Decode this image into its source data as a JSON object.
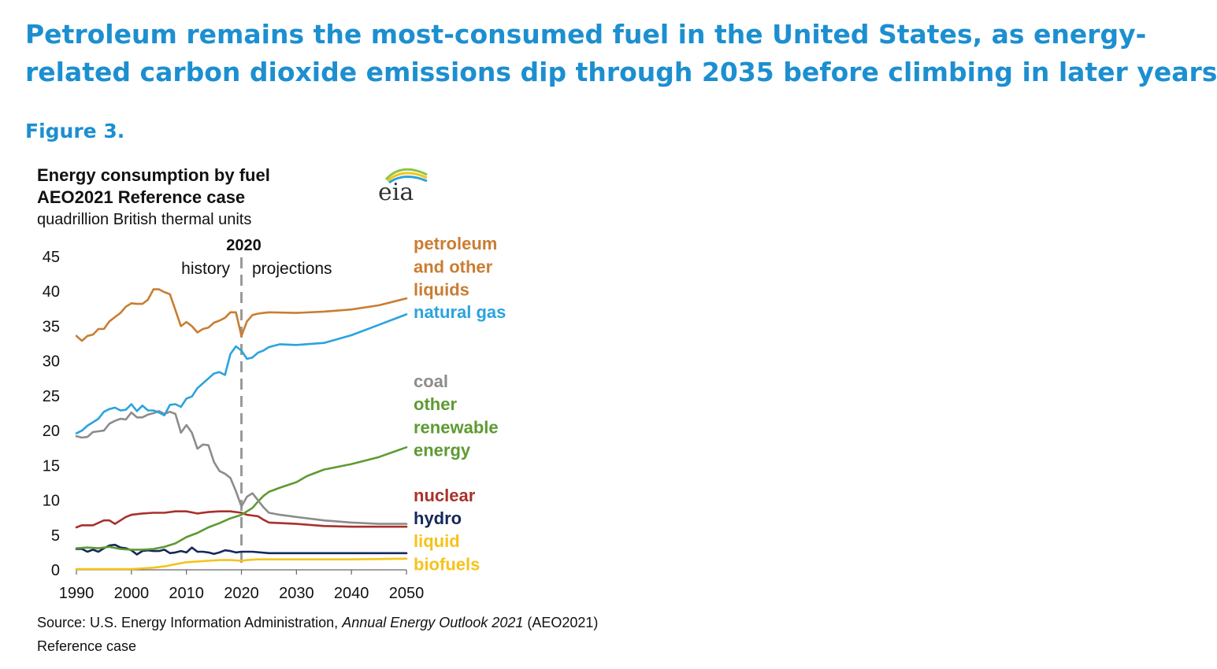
{
  "headline": {
    "line1": "Petroleum remains the most-consumed fuel in the United States, as energy-",
    "line2": "related carbon dioxide emissions dip through 2035 before climbing in later years"
  },
  "figure_label": "Figure 3.",
  "logo_text": "eia",
  "chart_data": {
    "type": "line",
    "title": "Energy consumption by fuel",
    "subtitle": "AEO2021 Reference case",
    "unit": "quadrillion  British thermal units",
    "xlim": [
      1990,
      2050
    ],
    "ylim": [
      0,
      45
    ],
    "x_ticks": [
      "1990",
      "2000",
      "2010",
      "2020",
      "2030",
      "2040",
      "2050"
    ],
    "y_ticks": [
      "0",
      "5",
      "10",
      "15",
      "20",
      "25",
      "30",
      "35",
      "40",
      "45"
    ],
    "divider": {
      "x": 2020,
      "label": "2020",
      "left_label": "history",
      "right_label": "projections"
    },
    "grid": false,
    "series": [
      {
        "name": "petroleum and other liquids",
        "label_lines": [
          "petroleum",
          "and other",
          "liquids"
        ],
        "color": "#c97d32",
        "points": [
          [
            1990,
            33.6
          ],
          [
            1991,
            32.9
          ],
          [
            1992,
            33.6
          ],
          [
            1993,
            33.8
          ],
          [
            1994,
            34.6
          ],
          [
            1995,
            34.6
          ],
          [
            1996,
            35.7
          ],
          [
            1997,
            36.3
          ],
          [
            1998,
            36.9
          ],
          [
            1999,
            37.8
          ],
          [
            2000,
            38.3
          ],
          [
            2001,
            38.2
          ],
          [
            2002,
            38.2
          ],
          [
            2003,
            38.8
          ],
          [
            2004,
            40.3
          ],
          [
            2005,
            40.3
          ],
          [
            2006,
            39.9
          ],
          [
            2007,
            39.6
          ],
          [
            2008,
            37.3
          ],
          [
            2009,
            35.0
          ],
          [
            2010,
            35.6
          ],
          [
            2011,
            35.0
          ],
          [
            2012,
            34.1
          ],
          [
            2013,
            34.6
          ],
          [
            2014,
            34.8
          ],
          [
            2015,
            35.5
          ],
          [
            2016,
            35.8
          ],
          [
            2017,
            36.2
          ],
          [
            2018,
            37.0
          ],
          [
            2019,
            37.0
          ],
          [
            2020,
            33.6
          ],
          [
            2021,
            35.7
          ],
          [
            2022,
            36.6
          ],
          [
            2023,
            36.8
          ],
          [
            2024,
            36.9
          ],
          [
            2025,
            37.0
          ],
          [
            2030,
            36.9
          ],
          [
            2035,
            37.1
          ],
          [
            2040,
            37.4
          ],
          [
            2045,
            38.0
          ],
          [
            2050,
            39.0
          ]
        ]
      },
      {
        "name": "natural gas",
        "label_lines": [
          "natural gas"
        ],
        "color": "#2aa3de",
        "points": [
          [
            1990,
            19.6
          ],
          [
            1991,
            20.0
          ],
          [
            1992,
            20.7
          ],
          [
            1993,
            21.2
          ],
          [
            1994,
            21.7
          ],
          [
            1995,
            22.7
          ],
          [
            1996,
            23.1
          ],
          [
            1997,
            23.3
          ],
          [
            1998,
            22.9
          ],
          [
            1999,
            23.0
          ],
          [
            2000,
            23.8
          ],
          [
            2001,
            22.8
          ],
          [
            2002,
            23.6
          ],
          [
            2003,
            22.9
          ],
          [
            2004,
            22.9
          ],
          [
            2005,
            22.6
          ],
          [
            2006,
            22.2
          ],
          [
            2007,
            23.7
          ],
          [
            2008,
            23.8
          ],
          [
            2009,
            23.4
          ],
          [
            2010,
            24.6
          ],
          [
            2011,
            24.9
          ],
          [
            2012,
            26.1
          ],
          [
            2013,
            26.8
          ],
          [
            2014,
            27.5
          ],
          [
            2015,
            28.2
          ],
          [
            2016,
            28.4
          ],
          [
            2017,
            28.0
          ],
          [
            2018,
            31.0
          ],
          [
            2019,
            32.1
          ],
          [
            2020,
            31.5
          ],
          [
            2021,
            30.3
          ],
          [
            2022,
            30.5
          ],
          [
            2023,
            31.2
          ],
          [
            2024,
            31.5
          ],
          [
            2025,
            32.0
          ],
          [
            2027,
            32.4
          ],
          [
            2030,
            32.3
          ],
          [
            2035,
            32.6
          ],
          [
            2040,
            33.7
          ],
          [
            2045,
            35.2
          ],
          [
            2050,
            36.7
          ]
        ]
      },
      {
        "name": "coal",
        "label_lines": [
          "coal"
        ],
        "color": "#8c8c8c",
        "points": [
          [
            1990,
            19.2
          ],
          [
            1991,
            19.0
          ],
          [
            1992,
            19.1
          ],
          [
            1993,
            19.8
          ],
          [
            1994,
            19.9
          ],
          [
            1995,
            20.0
          ],
          [
            1996,
            21.0
          ],
          [
            1997,
            21.4
          ],
          [
            1998,
            21.7
          ],
          [
            1999,
            21.6
          ],
          [
            2000,
            22.6
          ],
          [
            2001,
            21.9
          ],
          [
            2002,
            21.9
          ],
          [
            2003,
            22.3
          ],
          [
            2004,
            22.5
          ],
          [
            2005,
            22.8
          ],
          [
            2006,
            22.4
          ],
          [
            2007,
            22.7
          ],
          [
            2008,
            22.4
          ],
          [
            2009,
            19.7
          ],
          [
            2010,
            20.8
          ],
          [
            2011,
            19.7
          ],
          [
            2012,
            17.4
          ],
          [
            2013,
            18.0
          ],
          [
            2014,
            17.9
          ],
          [
            2015,
            15.5
          ],
          [
            2016,
            14.2
          ],
          [
            2017,
            13.8
          ],
          [
            2018,
            13.2
          ],
          [
            2019,
            11.3
          ],
          [
            2020,
            9.1
          ],
          [
            2021,
            10.5
          ],
          [
            2022,
            11.0
          ],
          [
            2023,
            10.0
          ],
          [
            2024,
            9.0
          ],
          [
            2025,
            8.2
          ],
          [
            2027,
            7.9
          ],
          [
            2030,
            7.6
          ],
          [
            2035,
            7.1
          ],
          [
            2040,
            6.8
          ],
          [
            2045,
            6.6
          ],
          [
            2050,
            6.6
          ]
        ]
      },
      {
        "name": "other renewable energy",
        "label_lines": [
          "other",
          "renewable",
          "energy"
        ],
        "color": "#5e9a32",
        "points": [
          [
            1990,
            3.1
          ],
          [
            1992,
            3.2
          ],
          [
            1994,
            3.1
          ],
          [
            1996,
            3.3
          ],
          [
            1998,
            3.0
          ],
          [
            2000,
            2.9
          ],
          [
            2002,
            2.9
          ],
          [
            2004,
            3.0
          ],
          [
            2006,
            3.3
          ],
          [
            2008,
            3.8
          ],
          [
            2010,
            4.7
          ],
          [
            2012,
            5.3
          ],
          [
            2014,
            6.1
          ],
          [
            2016,
            6.7
          ],
          [
            2018,
            7.4
          ],
          [
            2020,
            7.9
          ],
          [
            2022,
            8.9
          ],
          [
            2023,
            9.8
          ],
          [
            2024,
            10.6
          ],
          [
            2025,
            11.2
          ],
          [
            2027,
            11.8
          ],
          [
            2030,
            12.6
          ],
          [
            2032,
            13.5
          ],
          [
            2035,
            14.4
          ],
          [
            2040,
            15.2
          ],
          [
            2045,
            16.2
          ],
          [
            2050,
            17.6
          ]
        ]
      },
      {
        "name": "nuclear",
        "label_lines": [
          "nuclear"
        ],
        "color": "#a8312c",
        "points": [
          [
            1990,
            6.1
          ],
          [
            1991,
            6.4
          ],
          [
            1993,
            6.4
          ],
          [
            1995,
            7.1
          ],
          [
            1996,
            7.1
          ],
          [
            1997,
            6.6
          ],
          [
            1998,
            7.1
          ],
          [
            1999,
            7.6
          ],
          [
            2000,
            7.9
          ],
          [
            2002,
            8.1
          ],
          [
            2004,
            8.2
          ],
          [
            2006,
            8.2
          ],
          [
            2008,
            8.4
          ],
          [
            2010,
            8.4
          ],
          [
            2012,
            8.1
          ],
          [
            2014,
            8.3
          ],
          [
            2016,
            8.4
          ],
          [
            2018,
            8.4
          ],
          [
            2020,
            8.2
          ],
          [
            2021,
            7.9
          ],
          [
            2022,
            7.8
          ],
          [
            2023,
            7.7
          ],
          [
            2024,
            7.2
          ],
          [
            2025,
            6.8
          ],
          [
            2030,
            6.6
          ],
          [
            2035,
            6.3
          ],
          [
            2040,
            6.2
          ],
          [
            2045,
            6.2
          ],
          [
            2050,
            6.2
          ]
        ]
      },
      {
        "name": "hydro",
        "label_lines": [
          "hydro"
        ],
        "color": "#14285a",
        "points": [
          [
            1990,
            3.0
          ],
          [
            1991,
            3.0
          ],
          [
            1992,
            2.6
          ],
          [
            1993,
            2.9
          ],
          [
            1994,
            2.6
          ],
          [
            1995,
            3.1
          ],
          [
            1996,
            3.5
          ],
          [
            1997,
            3.6
          ],
          [
            1998,
            3.2
          ],
          [
            1999,
            3.1
          ],
          [
            2000,
            2.8
          ],
          [
            2001,
            2.2
          ],
          [
            2002,
            2.7
          ],
          [
            2003,
            2.8
          ],
          [
            2004,
            2.7
          ],
          [
            2005,
            2.7
          ],
          [
            2006,
            2.9
          ],
          [
            2007,
            2.4
          ],
          [
            2008,
            2.5
          ],
          [
            2009,
            2.7
          ],
          [
            2010,
            2.5
          ],
          [
            2011,
            3.2
          ],
          [
            2012,
            2.6
          ],
          [
            2013,
            2.6
          ],
          [
            2014,
            2.5
          ],
          [
            2015,
            2.3
          ],
          [
            2016,
            2.5
          ],
          [
            2017,
            2.8
          ],
          [
            2018,
            2.7
          ],
          [
            2019,
            2.5
          ],
          [
            2020,
            2.6
          ],
          [
            2022,
            2.6
          ],
          [
            2025,
            2.4
          ],
          [
            2030,
            2.4
          ],
          [
            2040,
            2.4
          ],
          [
            2050,
            2.4
          ]
        ]
      },
      {
        "name": "liquid biofuels",
        "label_lines": [
          "liquid",
          "biofuels"
        ],
        "color": "#f5c31b",
        "points": [
          [
            1990,
            0.1
          ],
          [
            1995,
            0.1
          ],
          [
            2000,
            0.1
          ],
          [
            2002,
            0.2
          ],
          [
            2004,
            0.3
          ],
          [
            2006,
            0.5
          ],
          [
            2008,
            0.8
          ],
          [
            2010,
            1.1
          ],
          [
            2012,
            1.2
          ],
          [
            2014,
            1.3
          ],
          [
            2016,
            1.4
          ],
          [
            2018,
            1.4
          ],
          [
            2020,
            1.3
          ],
          [
            2021,
            1.4
          ],
          [
            2023,
            1.5
          ],
          [
            2025,
            1.5
          ],
          [
            2030,
            1.5
          ],
          [
            2040,
            1.5
          ],
          [
            2050,
            1.6
          ]
        ]
      }
    ]
  },
  "source": {
    "prefix": "Source: U.S. Energy Information Administration, ",
    "italic": "Annual Energy Outlook 2021",
    "suffix": " (AEO2021)",
    "line2": "Reference case"
  }
}
